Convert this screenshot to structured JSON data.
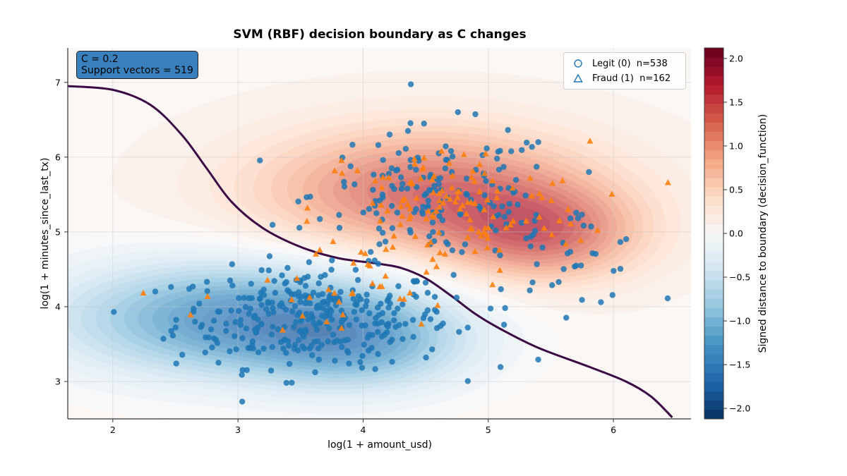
{
  "chart_data": {
    "type": "scatter",
    "title": "SVM (RBF) decision boundary as C changes",
    "xlabel": "log(1 + amount_usd)",
    "ylabel": "log(1 + minutes_since_last_tx)",
    "xlim": [
      1.64,
      6.62
    ],
    "ylim": [
      2.5,
      7.46
    ],
    "xticks": [
      2,
      3,
      4,
      5,
      6
    ],
    "yticks": [
      3,
      4,
      5,
      6,
      7
    ],
    "grid": true,
    "info_box": {
      "line1": "C = 0.2",
      "line2": "Support vectors = 519"
    },
    "legend": {
      "placement": "upper-right",
      "entries": [
        {
          "label": "Legit (0)  n=538",
          "marker": "circle",
          "color": "#1f77b4"
        },
        {
          "label": "Fraud (1)  n=162",
          "marker": "triangle",
          "color": "#ff7f0e"
        }
      ]
    },
    "series": [
      {
        "name": "Legit (0)",
        "count": 538,
        "marker": "circle",
        "color": "#1f77b4",
        "clusters": [
          {
            "center": [
              3.6,
              3.85
            ],
            "spread": [
              0.55,
              0.33
            ],
            "share": 0.62
          },
          {
            "center": [
              4.6,
              5.5
            ],
            "spread": [
              0.5,
              0.45
            ],
            "share": 0.3
          },
          {
            "center": [
              5.6,
              4.7
            ],
            "spread": [
              0.35,
              0.35
            ],
            "share": 0.08
          }
        ]
      },
      {
        "name": "Fraud (1)",
        "count": 162,
        "marker": "triangle",
        "color": "#ff7f0e",
        "clusters": [
          {
            "center": [
              4.7,
              5.3
            ],
            "spread": [
              0.55,
              0.45
            ],
            "share": 0.82
          },
          {
            "center": [
              3.7,
              4.1
            ],
            "spread": [
              0.5,
              0.35
            ],
            "share": 0.18
          }
        ]
      }
    ],
    "decision_boundary": {
      "level": 0,
      "color": "#3b0a45",
      "points": [
        [
          1.64,
          6.95
        ],
        [
          2.0,
          6.9
        ],
        [
          2.3,
          6.7
        ],
        [
          2.55,
          6.3
        ],
        [
          2.75,
          5.85
        ],
        [
          2.95,
          5.4
        ],
        [
          3.2,
          5.05
        ],
        [
          3.5,
          4.8
        ],
        [
          3.8,
          4.65
        ],
        [
          4.1,
          4.58
        ],
        [
          4.3,
          4.52
        ],
        [
          4.5,
          4.38
        ],
        [
          4.7,
          4.15
        ],
        [
          4.9,
          3.9
        ],
        [
          5.1,
          3.7
        ],
        [
          5.4,
          3.45
        ],
        [
          5.8,
          3.2
        ],
        [
          6.1,
          3.0
        ],
        [
          6.3,
          2.8
        ],
        [
          6.47,
          2.52
        ]
      ]
    },
    "contours": {
      "bumps": [
        {
          "center": [
            4.5,
            5.55
          ],
          "amp": 1.35,
          "spread": [
            0.95,
            0.6
          ]
        },
        {
          "center": [
            5.45,
            4.95
          ],
          "amp": 1.1,
          "spread": [
            0.55,
            0.45
          ]
        },
        {
          "center": [
            3.0,
            3.85
          ],
          "amp": -1.55,
          "spread": [
            1.0,
            0.55
          ]
        },
        {
          "center": [
            4.0,
            3.5
          ],
          "amp": -0.9,
          "spread": [
            0.6,
            0.45
          ]
        }
      ],
      "bias": 0.07
    },
    "colorbar": {
      "label": "Signed distance to boundary (decision_function)",
      "range": [
        -2.12,
        2.12
      ],
      "ticks": [
        "2.0",
        "1.5",
        "1.0",
        "0.5",
        "0.0",
        "−0.5",
        "−1.0",
        "−1.5",
        "−2.0"
      ],
      "tick_values": [
        2.0,
        1.5,
        1.0,
        0.5,
        0.0,
        -0.5,
        -1.0,
        -1.5,
        -2.0
      ],
      "colormap": "RdBu_r"
    }
  }
}
